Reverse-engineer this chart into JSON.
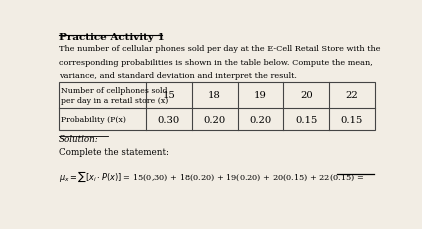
{
  "title": "Practice Activity 1",
  "para_lines": [
    "The number of cellular phones sold per day at the E-Cell Retail Store with the",
    "corresponding probabilities is shown in the table below. Compute the mean,",
    "variance, and standard deviation and interpret the result."
  ],
  "col_header_line1": "Number of cellphones sold",
  "col_header_line2": "per day in a retail store (x)",
  "col_header_prob": "Probability (P(x)",
  "x_values": [
    "15",
    "18",
    "19",
    "20",
    "22"
  ],
  "p_values": [
    "0.30",
    "0.20",
    "0.20",
    "0.15",
    "0.15"
  ],
  "solution_label": "Solution:",
  "complete_label": "Complete the statement:",
  "bg_color": "#f2ede4",
  "text_color": "#000000",
  "table_line_color": "#444444"
}
